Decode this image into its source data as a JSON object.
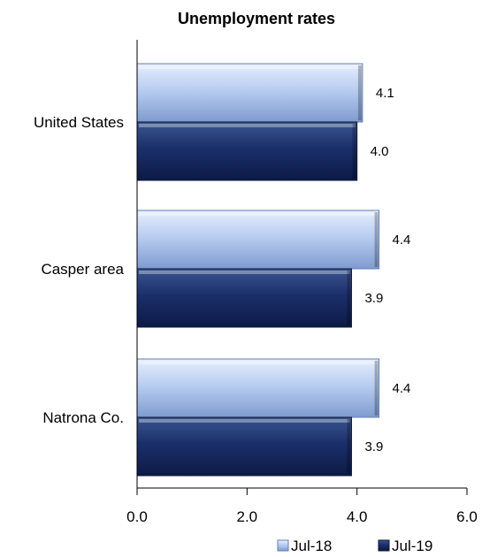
{
  "chart_data": {
    "type": "bar",
    "orientation": "horizontal",
    "title": "Unemployment rates",
    "categories": [
      "United States",
      "Casper area",
      "Natrona Co."
    ],
    "series": [
      {
        "name": "Jul-18",
        "values": [
          4.1,
          4.4,
          4.4
        ],
        "color": "#b8cdf0"
      },
      {
        "name": "Jul-19",
        "values": [
          4.0,
          3.9,
          3.9
        ],
        "color": "#1b2f6b"
      }
    ],
    "xlim": [
      0,
      6
    ],
    "xticks": [
      "0.0",
      "2.0",
      "4.0",
      "6.0"
    ],
    "data_labels": [
      [
        "4.1",
        "4.0"
      ],
      [
        "4.4",
        "3.9"
      ],
      [
        "4.4",
        "3.9"
      ]
    ],
    "grid": false,
    "legend_position": "bottom-right"
  }
}
